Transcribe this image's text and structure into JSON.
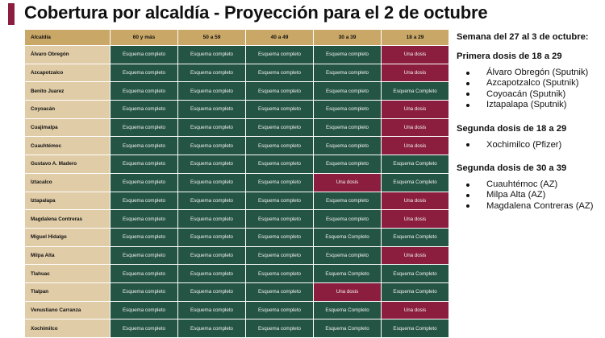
{
  "title": "Cobertura por alcaldía - Proyección para el 2 de octubre",
  "colors": {
    "accent": "#8b1e3f",
    "green": "#245443",
    "gold": "#c9a766",
    "beige": "#e0cca7"
  },
  "table": {
    "headers": [
      "Alcaldía",
      "60 y más",
      "50 a 59",
      "40 a 49",
      "30 a 39",
      "18 a 29"
    ],
    "rows": [
      {
        "name": "Álvaro Obregón",
        "cells": [
          [
            "Esquema completo",
            "g"
          ],
          [
            "Esquema completo",
            "g"
          ],
          [
            "Esquema completo",
            "g"
          ],
          [
            "Esquema completo",
            "g"
          ],
          [
            "Una dosis",
            "r"
          ]
        ]
      },
      {
        "name": "Azcapotzalco",
        "cells": [
          [
            "Esquema completo",
            "g"
          ],
          [
            "Esquema completo",
            "g"
          ],
          [
            "Esquema completo",
            "g"
          ],
          [
            "Esquema completo",
            "g"
          ],
          [
            "Una dosis",
            "r"
          ]
        ]
      },
      {
        "name": "Benito Juarez",
        "cells": [
          [
            "Esquema completo",
            "g"
          ],
          [
            "Esquema completo",
            "g"
          ],
          [
            "Esquema completo",
            "g"
          ],
          [
            "Esquema completo",
            "g"
          ],
          [
            "Esquema Completo",
            "g"
          ]
        ]
      },
      {
        "name": "Coyoacán",
        "cells": [
          [
            "Esquema completo",
            "g"
          ],
          [
            "Esquema completo",
            "g"
          ],
          [
            "Esquema completo",
            "g"
          ],
          [
            "Esquema completo",
            "g"
          ],
          [
            "Una dosis",
            "r"
          ]
        ]
      },
      {
        "name": "Cuajimalpa",
        "cells": [
          [
            "Esquema completo",
            "g"
          ],
          [
            "Esquema completo",
            "g"
          ],
          [
            "Esquema completo",
            "g"
          ],
          [
            "Esquema completo",
            "g"
          ],
          [
            "Una dosis",
            "r"
          ]
        ]
      },
      {
        "name": "Cuauhtémoc",
        "cells": [
          [
            "Esquema completo",
            "g"
          ],
          [
            "Esquema completo",
            "g"
          ],
          [
            "Esquema completo",
            "g"
          ],
          [
            "Esquema completo",
            "g"
          ],
          [
            "Una dosis",
            "r"
          ]
        ]
      },
      {
        "name": "Gustavo A. Madero",
        "cells": [
          [
            "Esquema completo",
            "g"
          ],
          [
            "Esquema completo",
            "g"
          ],
          [
            "Esquema completo",
            "g"
          ],
          [
            "Esquema completo",
            "g"
          ],
          [
            "Esquema Completo",
            "g"
          ]
        ]
      },
      {
        "name": "Iztacalco",
        "cells": [
          [
            "Esquema completo",
            "g"
          ],
          [
            "Esquema completo",
            "g"
          ],
          [
            "Esquema completo",
            "g"
          ],
          [
            "Una dosis",
            "r"
          ],
          [
            "Esquema Completo",
            "g"
          ]
        ]
      },
      {
        "name": "Iztapalapa",
        "cells": [
          [
            "Esquema completo",
            "g"
          ],
          [
            "Esquema completo",
            "g"
          ],
          [
            "Esquema completo",
            "g"
          ],
          [
            "Esquema completo",
            "g"
          ],
          [
            "Una dosis",
            "r"
          ]
        ]
      },
      {
        "name": "Magdalena Contreras",
        "cells": [
          [
            "Esquema completo",
            "g"
          ],
          [
            "Esquema completo",
            "g"
          ],
          [
            "Esquema completo",
            "g"
          ],
          [
            "Esquema completo",
            "g"
          ],
          [
            "Una dosis",
            "r"
          ]
        ]
      },
      {
        "name": "Miguel Hidalgo",
        "cells": [
          [
            "Esquema completo",
            "g"
          ],
          [
            "Esquema completo",
            "g"
          ],
          [
            "Esquema completo",
            "g"
          ],
          [
            "Esquema Completo",
            "g"
          ],
          [
            "Esquema Completo",
            "g"
          ]
        ]
      },
      {
        "name": "Milpa Alta",
        "cells": [
          [
            "Esquema completo",
            "g"
          ],
          [
            "Esquema completo",
            "g"
          ],
          [
            "Esquema completo",
            "g"
          ],
          [
            "Esquema completo",
            "g"
          ],
          [
            "Una dosis",
            "r"
          ]
        ]
      },
      {
        "name": "Tlahuac",
        "cells": [
          [
            "Esquema completo",
            "g"
          ],
          [
            "Esquema completo",
            "g"
          ],
          [
            "Esquema completo",
            "g"
          ],
          [
            "Esquema Completo",
            "g"
          ],
          [
            "Esquema Completo",
            "g"
          ]
        ]
      },
      {
        "name": "Tlalpan",
        "cells": [
          [
            "Esquema completo",
            "g"
          ],
          [
            "Esquema completo",
            "g"
          ],
          [
            "Esquema completo",
            "g"
          ],
          [
            "Una dosis",
            "r"
          ],
          [
            "Esquema Completo",
            "g"
          ]
        ]
      },
      {
        "name": "Venustiano Carranza",
        "cells": [
          [
            "Esquema completo",
            "g"
          ],
          [
            "Esquema completo",
            "g"
          ],
          [
            "Esquema completo",
            "g"
          ],
          [
            "Esquema Completo",
            "g"
          ],
          [
            "Una dosis",
            "r"
          ]
        ]
      },
      {
        "name": "Xochimilco",
        "cells": [
          [
            "Esquema completo",
            "g"
          ],
          [
            "Esquema completo",
            "g"
          ],
          [
            "Esquema completo",
            "g"
          ],
          [
            "Esquema Completo",
            "g"
          ],
          [
            "Esquema Completo",
            "g"
          ]
        ]
      }
    ]
  },
  "side": {
    "week": "Semana del 27 al 3 de octubre:",
    "groups": [
      {
        "title": "Primera dosis de 18 a 29",
        "items": [
          "Álvaro Obregón (Sputnik)",
          "Azcapotzalco (Sputnik)",
          "Coyoacán (Sputnik)",
          "Iztapalapa (Sputnik)"
        ]
      },
      {
        "title": "Segunda dosis de 18 a 29",
        "items": [
          "Xochimilco (Pfizer)"
        ]
      },
      {
        "title": "Segunda dosis de 30 a 39",
        "items": [
          "Cuauhtémoc (AZ)",
          "Milpa Alta (AZ)",
          "Magdalena Contreras (AZ)"
        ]
      }
    ]
  }
}
